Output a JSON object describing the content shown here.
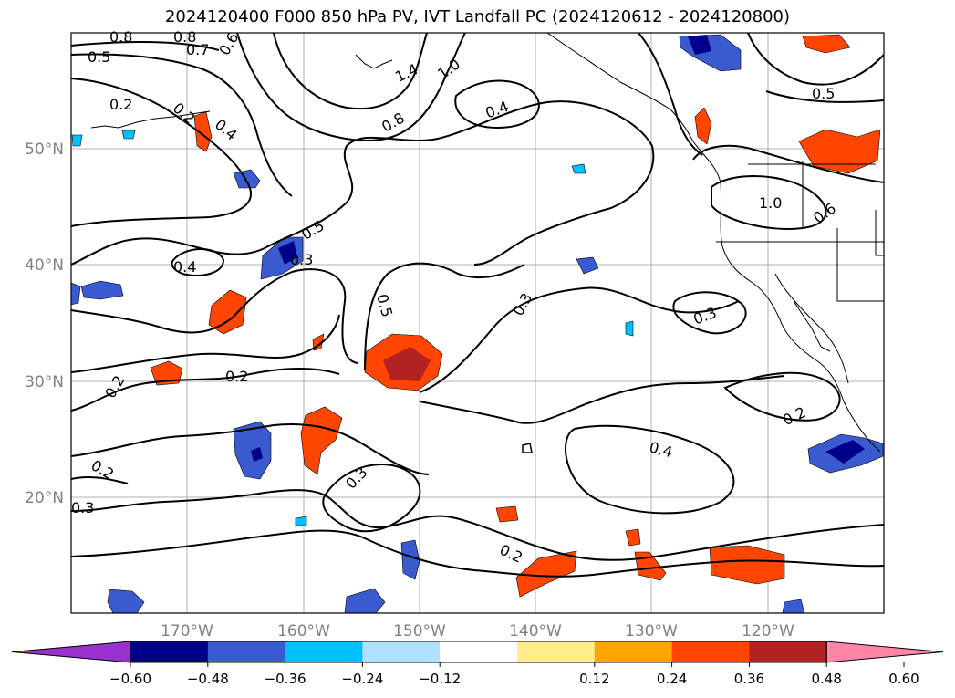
{
  "title": "2024120400 F000 850 hPa PV, IVT Landfall PC (2024120612 - 2024120800)",
  "lon_labels": [
    "170°W",
    "160°W",
    "150°W",
    "140°W",
    "130°W",
    "120°W"
  ],
  "lat_labels": [
    "50°N",
    "40°N",
    "30°N",
    "20°N"
  ],
  "colorbar": {
    "ticks": [
      "−0.60",
      "−0.48",
      "−0.36",
      "−0.24",
      "−0.12",
      "0.12",
      "0.24",
      "0.36",
      "0.48",
      "0.60"
    ],
    "colors": [
      "#9932cc",
      "#00008b",
      "#3a5bd0",
      "#00bfff",
      "#b0e2ff",
      "#ffffff",
      "#ffec8b",
      "#ffa500",
      "#ff4500",
      "#b22222",
      "#ff85a8"
    ]
  },
  "contour_labels": [
    "0.8",
    "0.8",
    "0.7",
    "0.6",
    "0.5",
    "1.4",
    "1.0",
    "0.4",
    "0.2",
    "0.2",
    "0.4",
    "0.8",
    "0.5",
    "0.4",
    "0.3",
    "0.5",
    "0.3",
    "0.2",
    "0.2",
    "0.3",
    "0.4",
    "0.2",
    "0.2",
    "0.3",
    "0.2",
    "0.5",
    "1.0",
    "0.6",
    "0.3"
  ]
}
